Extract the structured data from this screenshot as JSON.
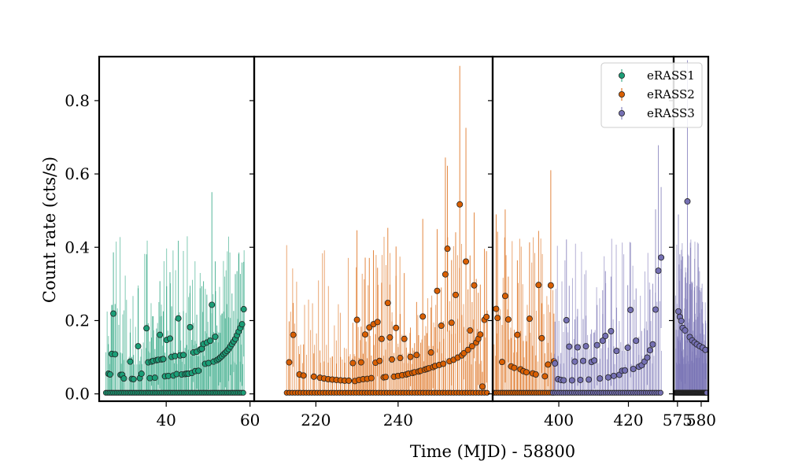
{
  "chart_data": {
    "type": "scatter",
    "title": "",
    "xlabel": "Time (MJD) - 58800",
    "ylabel": "Count rate (cts/s)",
    "ylim": [
      -0.02,
      0.92
    ],
    "yticks": [
      0.0,
      0.2,
      0.4,
      0.6,
      0.8
    ],
    "ytick_labels": [
      "0.0",
      "0.2",
      "0.4",
      "0.6",
      "0.8"
    ],
    "broken_x_axis": true,
    "grid": false,
    "legend_position": "top-right",
    "panels": [
      {
        "xlim": [
          24,
          61
        ],
        "xticks": [
          40,
          60
        ],
        "xtick_labels": [
          "40",
          "60"
        ]
      },
      {
        "xlim": [
          205,
          263
        ],
        "xticks": [
          220,
          240
        ],
        "xtick_labels": [
          "220",
          "240"
        ]
      },
      {
        "xlim": [
          381,
          433
        ],
        "xticks": [
          400,
          420
        ],
        "xtick_labels": [
          "400",
          "420"
        ]
      },
      {
        "xlim": [
          574.2,
          581.5
        ],
        "xticks": [
          575,
          580
        ],
        "xtick_labels": [
          "575",
          "580"
        ]
      }
    ],
    "series": [
      {
        "name": "eRASS1",
        "color": "#1b9e77",
        "x": [
          26.2,
          26.6,
          27.0,
          27.4,
          27.8,
          29.1,
          29.5,
          29.9,
          31.4,
          31.8,
          32.2,
          33.3,
          33.7,
          34.1,
          35.3,
          35.7,
          36.1,
          36.5,
          36.9,
          37.3,
          37.7,
          38.1,
          38.5,
          38.9,
          39.3,
          39.7,
          40.1,
          40.5,
          40.9,
          41.3,
          41.7,
          42.1,
          42.5,
          42.9,
          43.3,
          43.7,
          44.1,
          44.5,
          44.9,
          45.3,
          45.7,
          46.1,
          46.5,
          46.9,
          47.3,
          47.7,
          48.1,
          48.5,
          48.9,
          49.3,
          49.7,
          50.1,
          50.5,
          50.9,
          51.3,
          51.7,
          52.1,
          52.5,
          52.9,
          53.3,
          53.7,
          54.1,
          54.5,
          54.9,
          55.3,
          55.7,
          56.1,
          56.5,
          56.9,
          57.3,
          57.7,
          58.1,
          58.5
        ],
        "y": [
          0.055,
          0.053,
          0.109,
          0.219,
          0.108,
          0.052,
          0.052,
          0.042,
          0.088,
          0.041,
          0.04,
          0.13,
          0.043,
          0.055,
          0.179,
          0.086,
          0.043,
          0.088,
          0.09,
          0.044,
          0.092,
          0.093,
          0.161,
          0.094,
          0.095,
          0.048,
          0.147,
          0.049,
          0.151,
          0.101,
          0.05,
          0.103,
          0.054,
          0.206,
          0.105,
          0.053,
          0.106,
          0.054,
          0.055,
          0.055,
          0.182,
          0.057,
          0.113,
          0.062,
          0.115,
          0.063,
          0.121,
          0.123,
          0.136,
          0.082,
          0.14,
          0.084,
          0.145,
          0.243,
          0.088,
          0.156,
          0.092,
          0.095,
          0.099,
          0.103,
          0.108,
          0.112,
          0.117,
          0.122,
          0.129,
          0.136,
          0.143,
          0.15,
          0.16,
          0.17,
          0.18,
          0.19,
          0.231
        ]
      },
      {
        "name": "eRASS2",
        "color": "#d95f02",
        "x": [
          213.5,
          214.5,
          216.0,
          217.0,
          219.5,
          221.0,
          222.0,
          223.0,
          224.0,
          225.0,
          226.0,
          227.0,
          228.0,
          229.0,
          229.5,
          230.0,
          230.5,
          231.0,
          231.5,
          232.0,
          232.5,
          233.0,
          233.5,
          234.0,
          234.5,
          235.0,
          235.5,
          236.0,
          236.5,
          237.0,
          237.5,
          238.0,
          238.5,
          239.0,
          239.5,
          240.0,
          240.5,
          241.0,
          241.5,
          242.0,
          242.5,
          243.0,
          243.5,
          244.0,
          244.5,
          245.0,
          245.5,
          246.0,
          246.5,
          247.0,
          247.5,
          248.0,
          248.5,
          249.0,
          249.5,
          250.0,
          250.5,
          251.0,
          251.5,
          252.0,
          252.5,
          253.0,
          253.5,
          254.0,
          254.5,
          255.0,
          255.5,
          256.0,
          256.5,
          257.0,
          257.5,
          258.0,
          258.5,
          259.0,
          259.5,
          260.0,
          260.5,
          261.0,
          261.5
        ],
        "y": [
          0.086,
          0.161,
          0.053,
          0.05,
          0.047,
          0.044,
          0.042,
          0.04,
          0.039,
          0.038,
          0.037,
          0.036,
          0.036,
          0.084,
          0.035,
          0.202,
          0.038,
          0.086,
          0.04,
          0.162,
          0.041,
          0.181,
          0.043,
          0.19,
          0.085,
          0.196,
          0.09,
          0.15,
          0.045,
          0.046,
          0.248,
          0.154,
          0.094,
          0.047,
          0.18,
          0.049,
          0.098,
          0.051,
          0.15,
          0.053,
          0.055,
          0.101,
          0.057,
          0.059,
          0.106,
          0.061,
          0.063,
          0.211,
          0.066,
          0.068,
          0.07,
          0.113,
          0.073,
          0.076,
          0.281,
          0.079,
          0.186,
          0.082,
          0.326,
          0.396,
          0.089,
          0.194,
          0.093,
          0.27,
          0.099,
          0.517,
          0.105,
          0.111,
          0.361,
          0.12,
          0.173,
          0.13,
          0.296,
          0.14,
          0.15,
          0.162,
          0.02,
          0.202,
          0.21
        ]
      },
      {
        "name": "eRASS2",
        "color": "#d95f02",
        "x": [
          382.0,
          382.4,
          383.7,
          384.6,
          385.5,
          386.3,
          387.2,
          388.1,
          389.0,
          389.8,
          390.7,
          391.6,
          392.5,
          393.4,
          394.2,
          395.1,
          396.0,
          396.9,
          397.7,
          398.6
        ],
        "y": [
          0.232,
          0.207,
          0.087,
          0.267,
          0.203,
          0.075,
          0.071,
          0.161,
          0.067,
          0.062,
          0.059,
          0.205,
          0.056,
          0.053,
          0.297,
          0.152,
          0.048,
          0.08,
          0.296,
          0.089
        ]
      },
      {
        "name": "eRASS3",
        "color": "#7570b3",
        "x": [
          398.9,
          399.8,
          400.6,
          401.4,
          402.2,
          403.0,
          403.8,
          404.6,
          405.4,
          406.2,
          407.0,
          407.8,
          408.6,
          409.4,
          410.2,
          411.0,
          411.8,
          412.6,
          413.4,
          414.2,
          415.0,
          415.8,
          416.6,
          417.4,
          418.2,
          419.0,
          419.8,
          420.6,
          421.4,
          422.2,
          423.0,
          423.8,
          424.6,
          425.4,
          426.2,
          427.0,
          427.8,
          428.6,
          429.4
        ],
        "y": [
          0.083,
          0.04,
          0.038,
          0.037,
          0.201,
          0.129,
          0.037,
          0.088,
          0.127,
          0.038,
          0.09,
          0.13,
          0.039,
          0.087,
          0.091,
          0.133,
          0.042,
          0.145,
          0.158,
          0.045,
          0.171,
          0.049,
          0.117,
          0.052,
          0.063,
          0.064,
          0.126,
          0.229,
          0.068,
          0.145,
          0.074,
          0.078,
          0.088,
          0.099,
          0.119,
          0.135,
          0.23,
          0.336,
          0.372
        ]
      },
      {
        "name": "eRASS3",
        "color": "#7570b3",
        "x": [
          575.2,
          575.5,
          575.8,
          576.1,
          576.6,
          577.1,
          577.6,
          578.1,
          578.6,
          579.1,
          579.7,
          580.3,
          580.9
        ],
        "y": [
          0.225,
          0.21,
          0.199,
          0.18,
          0.173,
          0.525,
          0.155,
          0.146,
          0.14,
          0.135,
          0.13,
          0.126,
          0.12
        ]
      }
    ],
    "legend": [
      {
        "label": "eRASS1",
        "color": "#1b9e77"
      },
      {
        "label": "eRASS2",
        "color": "#d95f02"
      },
      {
        "label": "eRASS3",
        "color": "#7570b3"
      }
    ]
  }
}
